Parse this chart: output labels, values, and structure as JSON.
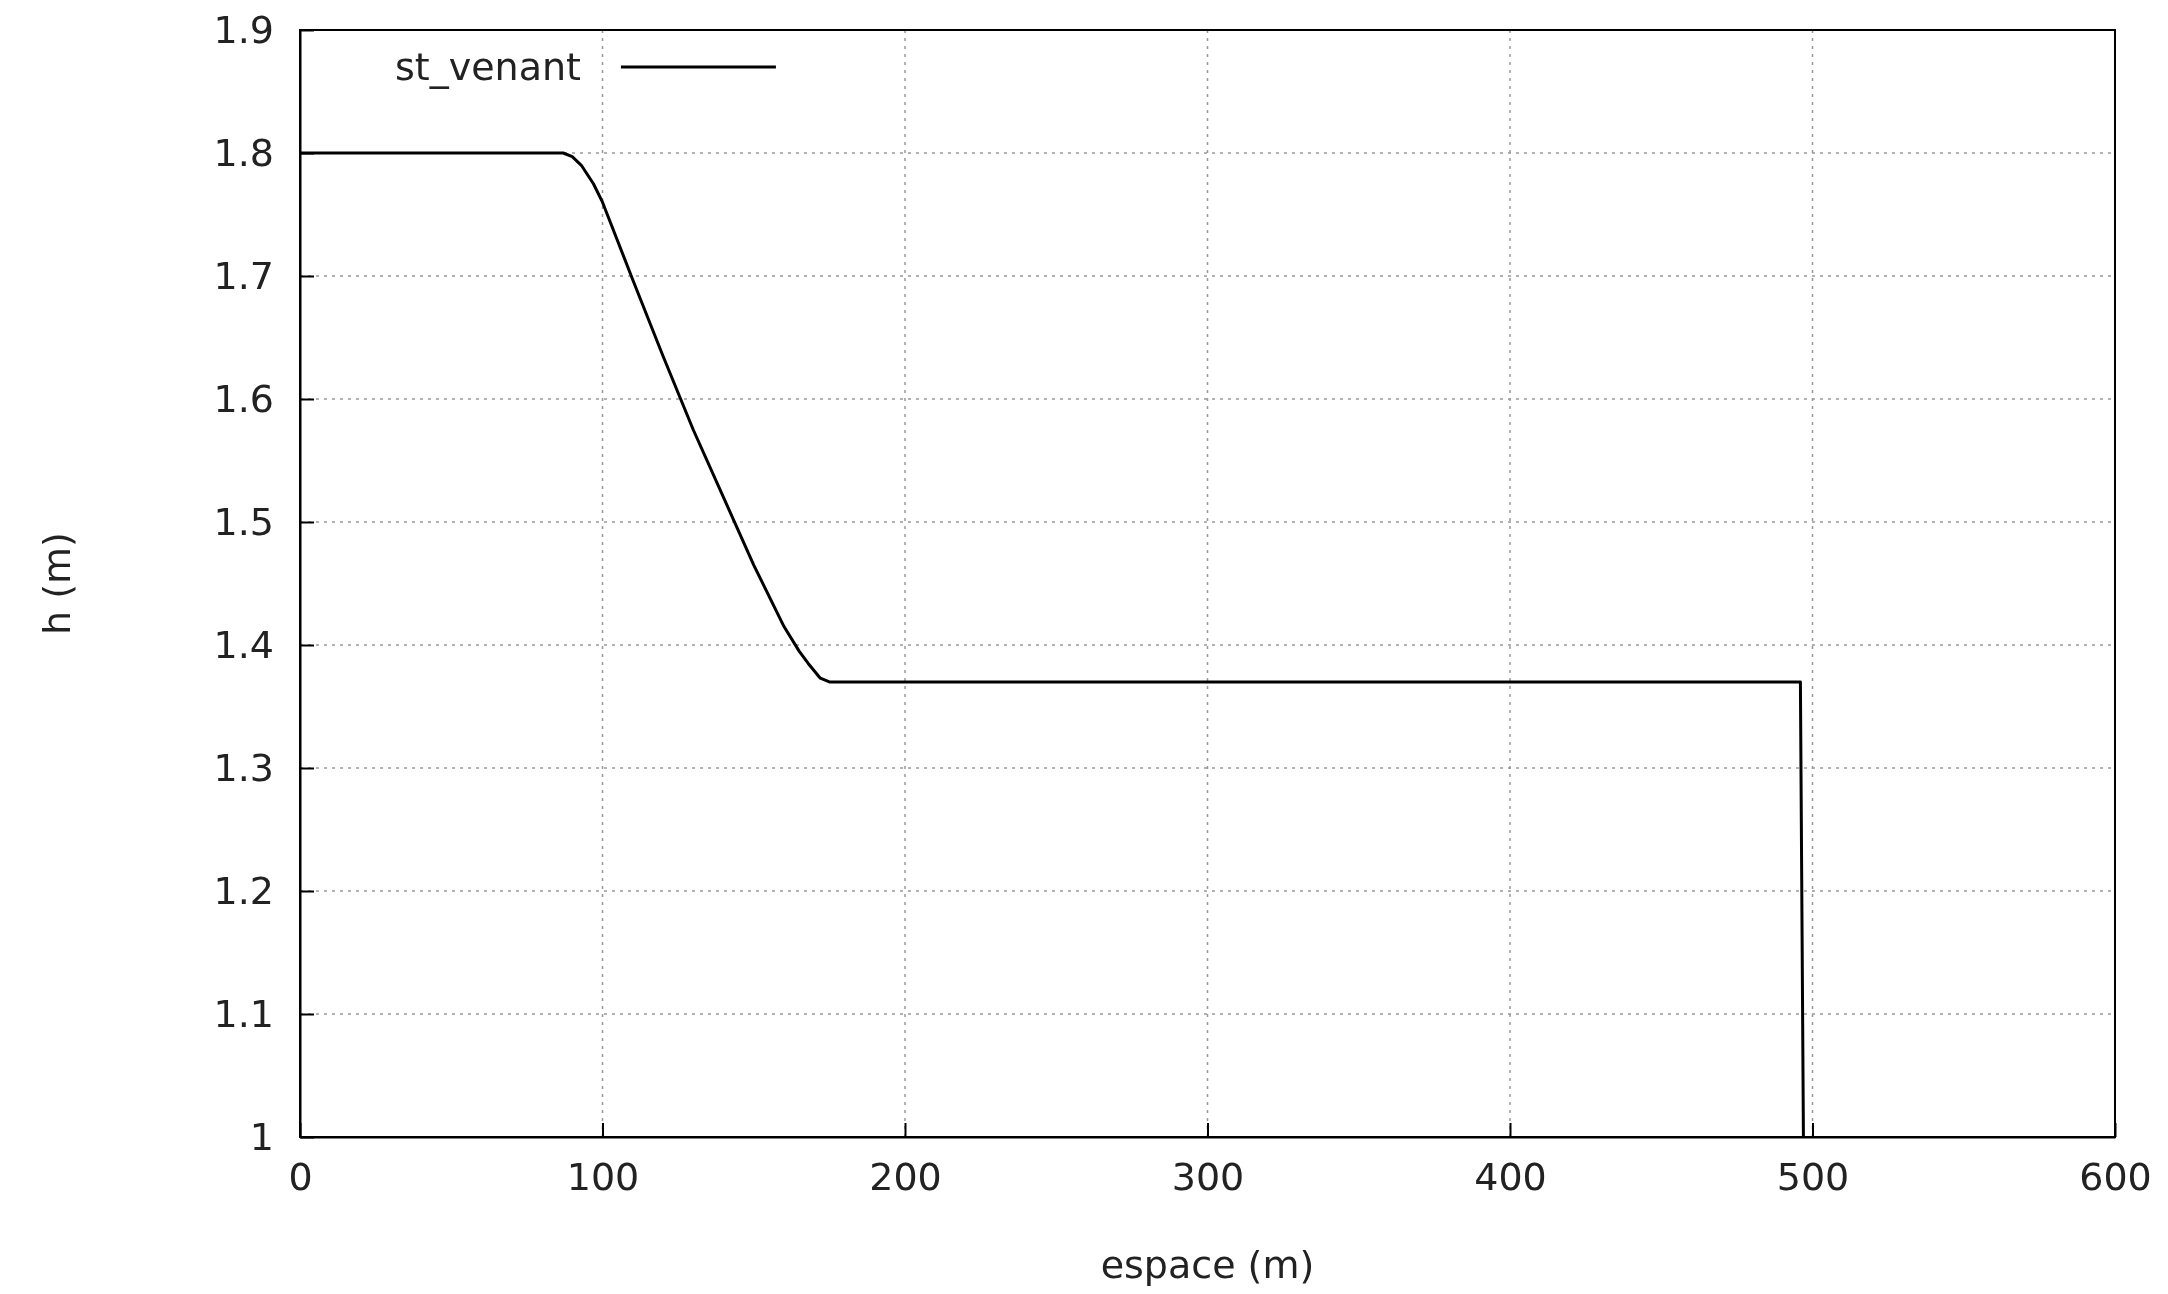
{
  "chart_data": {
    "type": "line",
    "xlabel": "espace (m)",
    "ylabel": "h (m)",
    "xlim": [
      0,
      600
    ],
    "xticks": [
      0,
      100,
      200,
      300,
      400,
      500,
      600
    ],
    "ylim": [
      1,
      1.9
    ],
    "yticks": [
      1,
      1.1,
      1.2,
      1.3,
      1.4,
      1.5,
      1.6,
      1.7,
      1.8,
      1.9
    ],
    "grid": true,
    "legend": "top left",
    "line_style": "solid",
    "marker": "none",
    "series": [
      {
        "name": "st_venant",
        "color": "#000000",
        "x": [
          0,
          87,
          90,
          93,
          97,
          100,
          110,
          120,
          130,
          140,
          150,
          160,
          165,
          168,
          172,
          175,
          300,
          400,
          496,
          497
        ],
        "values": [
          1.8,
          1.8,
          1.797,
          1.79,
          1.775,
          1.76,
          1.697,
          1.635,
          1.575,
          1.52,
          1.465,
          1.415,
          1.395,
          1.385,
          1.373,
          1.37,
          1.37,
          1.37,
          1.37,
          1.0
        ]
      }
    ]
  }
}
